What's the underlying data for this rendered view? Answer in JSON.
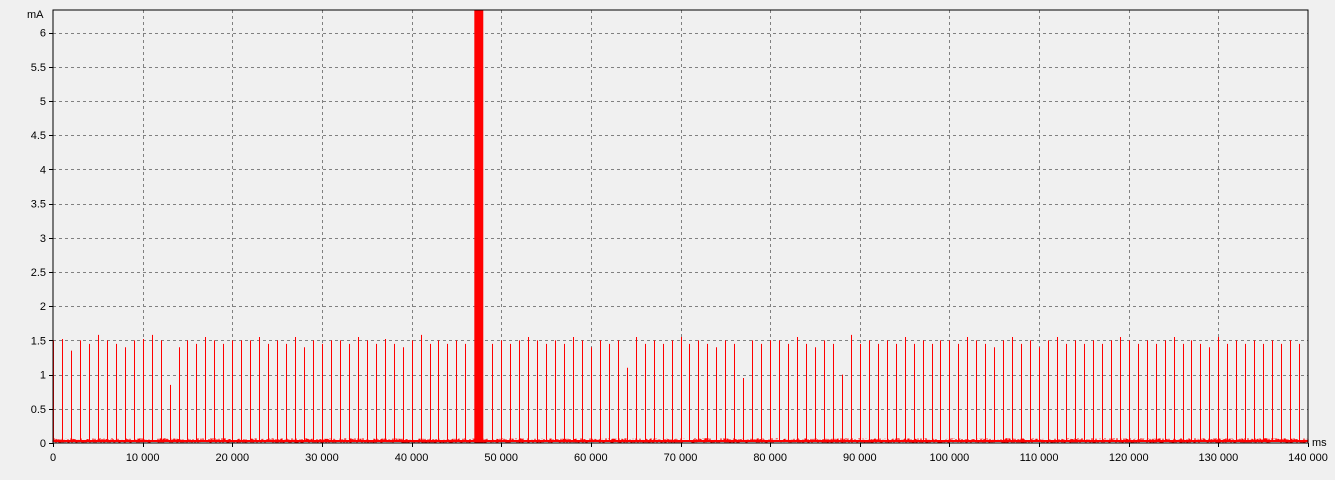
{
  "chart_data": {
    "type": "line",
    "title": "",
    "xlabel": "ms",
    "ylabel": "mA",
    "xlim": [
      0,
      140000
    ],
    "ylim": [
      0,
      6.33
    ],
    "grid": true,
    "line_color": "#ff0000",
    "plot_background": "#f0f0f0",
    "grid_color": "#808080",
    "x_ticks": [
      0,
      10000,
      20000,
      30000,
      40000,
      50000,
      60000,
      70000,
      80000,
      90000,
      100000,
      110000,
      120000,
      130000,
      140000
    ],
    "x_tick_labels": [
      "0",
      "10 000",
      "20 000",
      "30 000",
      "40 000",
      "50 000",
      "60 000",
      "70 000",
      "80 000",
      "90 000",
      "100 000",
      "110 000",
      "120 000",
      "130 000",
      "140 000"
    ],
    "y_ticks": [
      0,
      0.5,
      1,
      1.5,
      2,
      2.5,
      3,
      3.5,
      4,
      4.5,
      5,
      5.5,
      6
    ],
    "y_tick_labels": [
      "0",
      "0.5",
      "1",
      "1.5",
      "2",
      "2.5",
      "3",
      "3.5",
      "4",
      "4.5",
      "5",
      "5.5",
      "6"
    ],
    "baseline_mA": 0.03,
    "baseline_noise_mA": 0.04,
    "spike_period_ms": 1000,
    "spike_peak_mA": 1.5,
    "spikes": [
      {
        "x": 0,
        "y": 1.5
      },
      {
        "x": 1000,
        "y": 1.52
      },
      {
        "x": 2000,
        "y": 1.35
      },
      {
        "x": 3000,
        "y": 1.5
      },
      {
        "x": 4000,
        "y": 1.45
      },
      {
        "x": 5000,
        "y": 1.58
      },
      {
        "x": 6000,
        "y": 1.5
      },
      {
        "x": 7000,
        "y": 1.45
      },
      {
        "x": 8000,
        "y": 1.4
      },
      {
        "x": 9000,
        "y": 1.5
      },
      {
        "x": 10000,
        "y": 1.52
      },
      {
        "x": 11000,
        "y": 1.58
      },
      {
        "x": 12000,
        "y": 1.5
      },
      {
        "x": 13000,
        "y": 0.85
      },
      {
        "x": 14000,
        "y": 1.4
      },
      {
        "x": 15000,
        "y": 1.5
      },
      {
        "x": 16000,
        "y": 1.45
      },
      {
        "x": 17000,
        "y": 1.55
      },
      {
        "x": 18000,
        "y": 1.5
      },
      {
        "x": 19000,
        "y": 1.45
      },
      {
        "x": 20000,
        "y": 1.5
      },
      {
        "x": 21000,
        "y": 1.5
      },
      {
        "x": 22000,
        "y": 1.5
      },
      {
        "x": 23000,
        "y": 1.55
      },
      {
        "x": 24000,
        "y": 1.45
      },
      {
        "x": 25000,
        "y": 1.5
      },
      {
        "x": 26000,
        "y": 1.45
      },
      {
        "x": 27000,
        "y": 1.55
      },
      {
        "x": 28000,
        "y": 1.4
      },
      {
        "x": 29000,
        "y": 1.5
      },
      {
        "x": 30000,
        "y": 1.45
      },
      {
        "x": 31000,
        "y": 1.5
      },
      {
        "x": 32000,
        "y": 1.5
      },
      {
        "x": 33000,
        "y": 1.45
      },
      {
        "x": 34000,
        "y": 1.55
      },
      {
        "x": 35000,
        "y": 1.5
      },
      {
        "x": 36000,
        "y": 1.45
      },
      {
        "x": 37000,
        "y": 1.52
      },
      {
        "x": 38000,
        "y": 1.45
      },
      {
        "x": 39000,
        "y": 1.4
      },
      {
        "x": 40000,
        "y": 1.5
      },
      {
        "x": 41000,
        "y": 1.58
      },
      {
        "x": 42000,
        "y": 1.45
      },
      {
        "x": 43000,
        "y": 1.5
      },
      {
        "x": 44000,
        "y": 1.45
      },
      {
        "x": 45000,
        "y": 1.5
      },
      {
        "x": 46000,
        "y": 1.45
      },
      {
        "x": 49000,
        "y": 1.45
      },
      {
        "x": 50000,
        "y": 1.5
      },
      {
        "x": 51000,
        "y": 1.45
      },
      {
        "x": 52000,
        "y": 1.5
      },
      {
        "x": 53000,
        "y": 1.55
      },
      {
        "x": 54000,
        "y": 1.5
      },
      {
        "x": 55000,
        "y": 1.45
      },
      {
        "x": 56000,
        "y": 1.5
      },
      {
        "x": 57000,
        "y": 1.45
      },
      {
        "x": 58000,
        "y": 1.55
      },
      {
        "x": 59000,
        "y": 1.5
      },
      {
        "x": 60000,
        "y": 1.4
      },
      {
        "x": 61000,
        "y": 1.5
      },
      {
        "x": 62000,
        "y": 1.45
      },
      {
        "x": 63000,
        "y": 1.5
      },
      {
        "x": 64000,
        "y": 1.1
      },
      {
        "x": 65000,
        "y": 1.55
      },
      {
        "x": 66000,
        "y": 1.45
      },
      {
        "x": 67000,
        "y": 1.5
      },
      {
        "x": 68000,
        "y": 1.45
      },
      {
        "x": 69000,
        "y": 1.5
      },
      {
        "x": 70000,
        "y": 1.55
      },
      {
        "x": 71000,
        "y": 1.45
      },
      {
        "x": 72000,
        "y": 1.5
      },
      {
        "x": 73000,
        "y": 1.45
      },
      {
        "x": 74000,
        "y": 1.4
      },
      {
        "x": 75000,
        "y": 1.5
      },
      {
        "x": 76000,
        "y": 1.45
      },
      {
        "x": 77000,
        "y": 0.95
      },
      {
        "x": 78000,
        "y": 1.5
      },
      {
        "x": 79000,
        "y": 1.45
      },
      {
        "x": 80000,
        "y": 1.5
      },
      {
        "x": 81000,
        "y": 1.5
      },
      {
        "x": 82000,
        "y": 1.45
      },
      {
        "x": 83000,
        "y": 1.55
      },
      {
        "x": 84000,
        "y": 1.45
      },
      {
        "x": 85000,
        "y": 1.4
      },
      {
        "x": 86000,
        "y": 1.5
      },
      {
        "x": 87000,
        "y": 1.45
      },
      {
        "x": 88000,
        "y": 1.0
      },
      {
        "x": 89000,
        "y": 1.58
      },
      {
        "x": 90000,
        "y": 1.45
      },
      {
        "x": 91000,
        "y": 1.5
      },
      {
        "x": 92000,
        "y": 1.45
      },
      {
        "x": 93000,
        "y": 1.5
      },
      {
        "x": 94000,
        "y": 1.45
      },
      {
        "x": 95000,
        "y": 1.55
      },
      {
        "x": 96000,
        "y": 1.45
      },
      {
        "x": 97000,
        "y": 1.5
      },
      {
        "x": 98000,
        "y": 1.45
      },
      {
        "x": 99000,
        "y": 1.5
      },
      {
        "x": 100000,
        "y": 1.5
      },
      {
        "x": 101000,
        "y": 1.45
      },
      {
        "x": 102000,
        "y": 1.55
      },
      {
        "x": 103000,
        "y": 1.5
      },
      {
        "x": 104000,
        "y": 1.45
      },
      {
        "x": 105000,
        "y": 1.4
      },
      {
        "x": 106000,
        "y": 1.5
      },
      {
        "x": 107000,
        "y": 1.55
      },
      {
        "x": 108000,
        "y": 1.45
      },
      {
        "x": 109000,
        "y": 1.5
      },
      {
        "x": 110000,
        "y": 1.4
      },
      {
        "x": 111000,
        "y": 1.5
      },
      {
        "x": 112000,
        "y": 1.55
      },
      {
        "x": 113000,
        "y": 1.45
      },
      {
        "x": 114000,
        "y": 1.5
      },
      {
        "x": 115000,
        "y": 1.45
      },
      {
        "x": 116000,
        "y": 1.5
      },
      {
        "x": 117000,
        "y": 1.45
      },
      {
        "x": 118000,
        "y": 1.5
      },
      {
        "x": 119000,
        "y": 1.55
      },
      {
        "x": 120000,
        "y": 1.5
      },
      {
        "x": 121000,
        "y": 1.45
      },
      {
        "x": 122000,
        "y": 1.5
      },
      {
        "x": 123000,
        "y": 1.45
      },
      {
        "x": 124000,
        "y": 1.5
      },
      {
        "x": 125000,
        "y": 1.55
      },
      {
        "x": 126000,
        "y": 1.45
      },
      {
        "x": 127000,
        "y": 1.5
      },
      {
        "x": 128000,
        "y": 1.45
      },
      {
        "x": 129000,
        "y": 1.4
      },
      {
        "x": 130000,
        "y": 1.55
      },
      {
        "x": 131000,
        "y": 1.45
      },
      {
        "x": 132000,
        "y": 1.5
      },
      {
        "x": 133000,
        "y": 1.45
      },
      {
        "x": 134000,
        "y": 1.5
      },
      {
        "x": 135000,
        "y": 1.45
      },
      {
        "x": 136000,
        "y": 1.5
      },
      {
        "x": 137000,
        "y": 1.45
      },
      {
        "x": 138000,
        "y": 1.5
      },
      {
        "x": 139000,
        "y": 1.45
      }
    ],
    "burst": {
      "x_start": 47000,
      "x_end": 48000,
      "y_low": 0,
      "y_high": 6.33
    }
  }
}
